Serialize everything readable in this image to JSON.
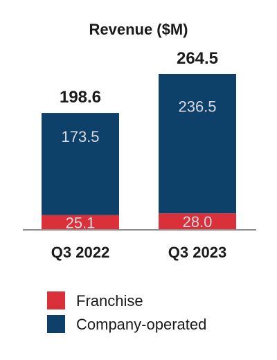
{
  "chart_data": {
    "type": "bar",
    "stacked": true,
    "title": "Revenue ($M)",
    "categories": [
      "Q3 2022",
      "Q3 2023"
    ],
    "series": [
      {
        "name": "Franchise",
        "values": [
          25.1,
          28.0
        ],
        "labels": [
          "25.1",
          "28.0"
        ],
        "color": "#d9303a"
      },
      {
        "name": "Company-operated",
        "values": [
          173.5,
          236.5
        ],
        "labels": [
          "173.5",
          "236.5"
        ],
        "color": "#0e4169"
      }
    ],
    "totals": [
      "198.6",
      "264.5"
    ],
    "ylim": [
      0,
      264.5
    ],
    "grid": false,
    "legend_placement": "bottom-left"
  }
}
